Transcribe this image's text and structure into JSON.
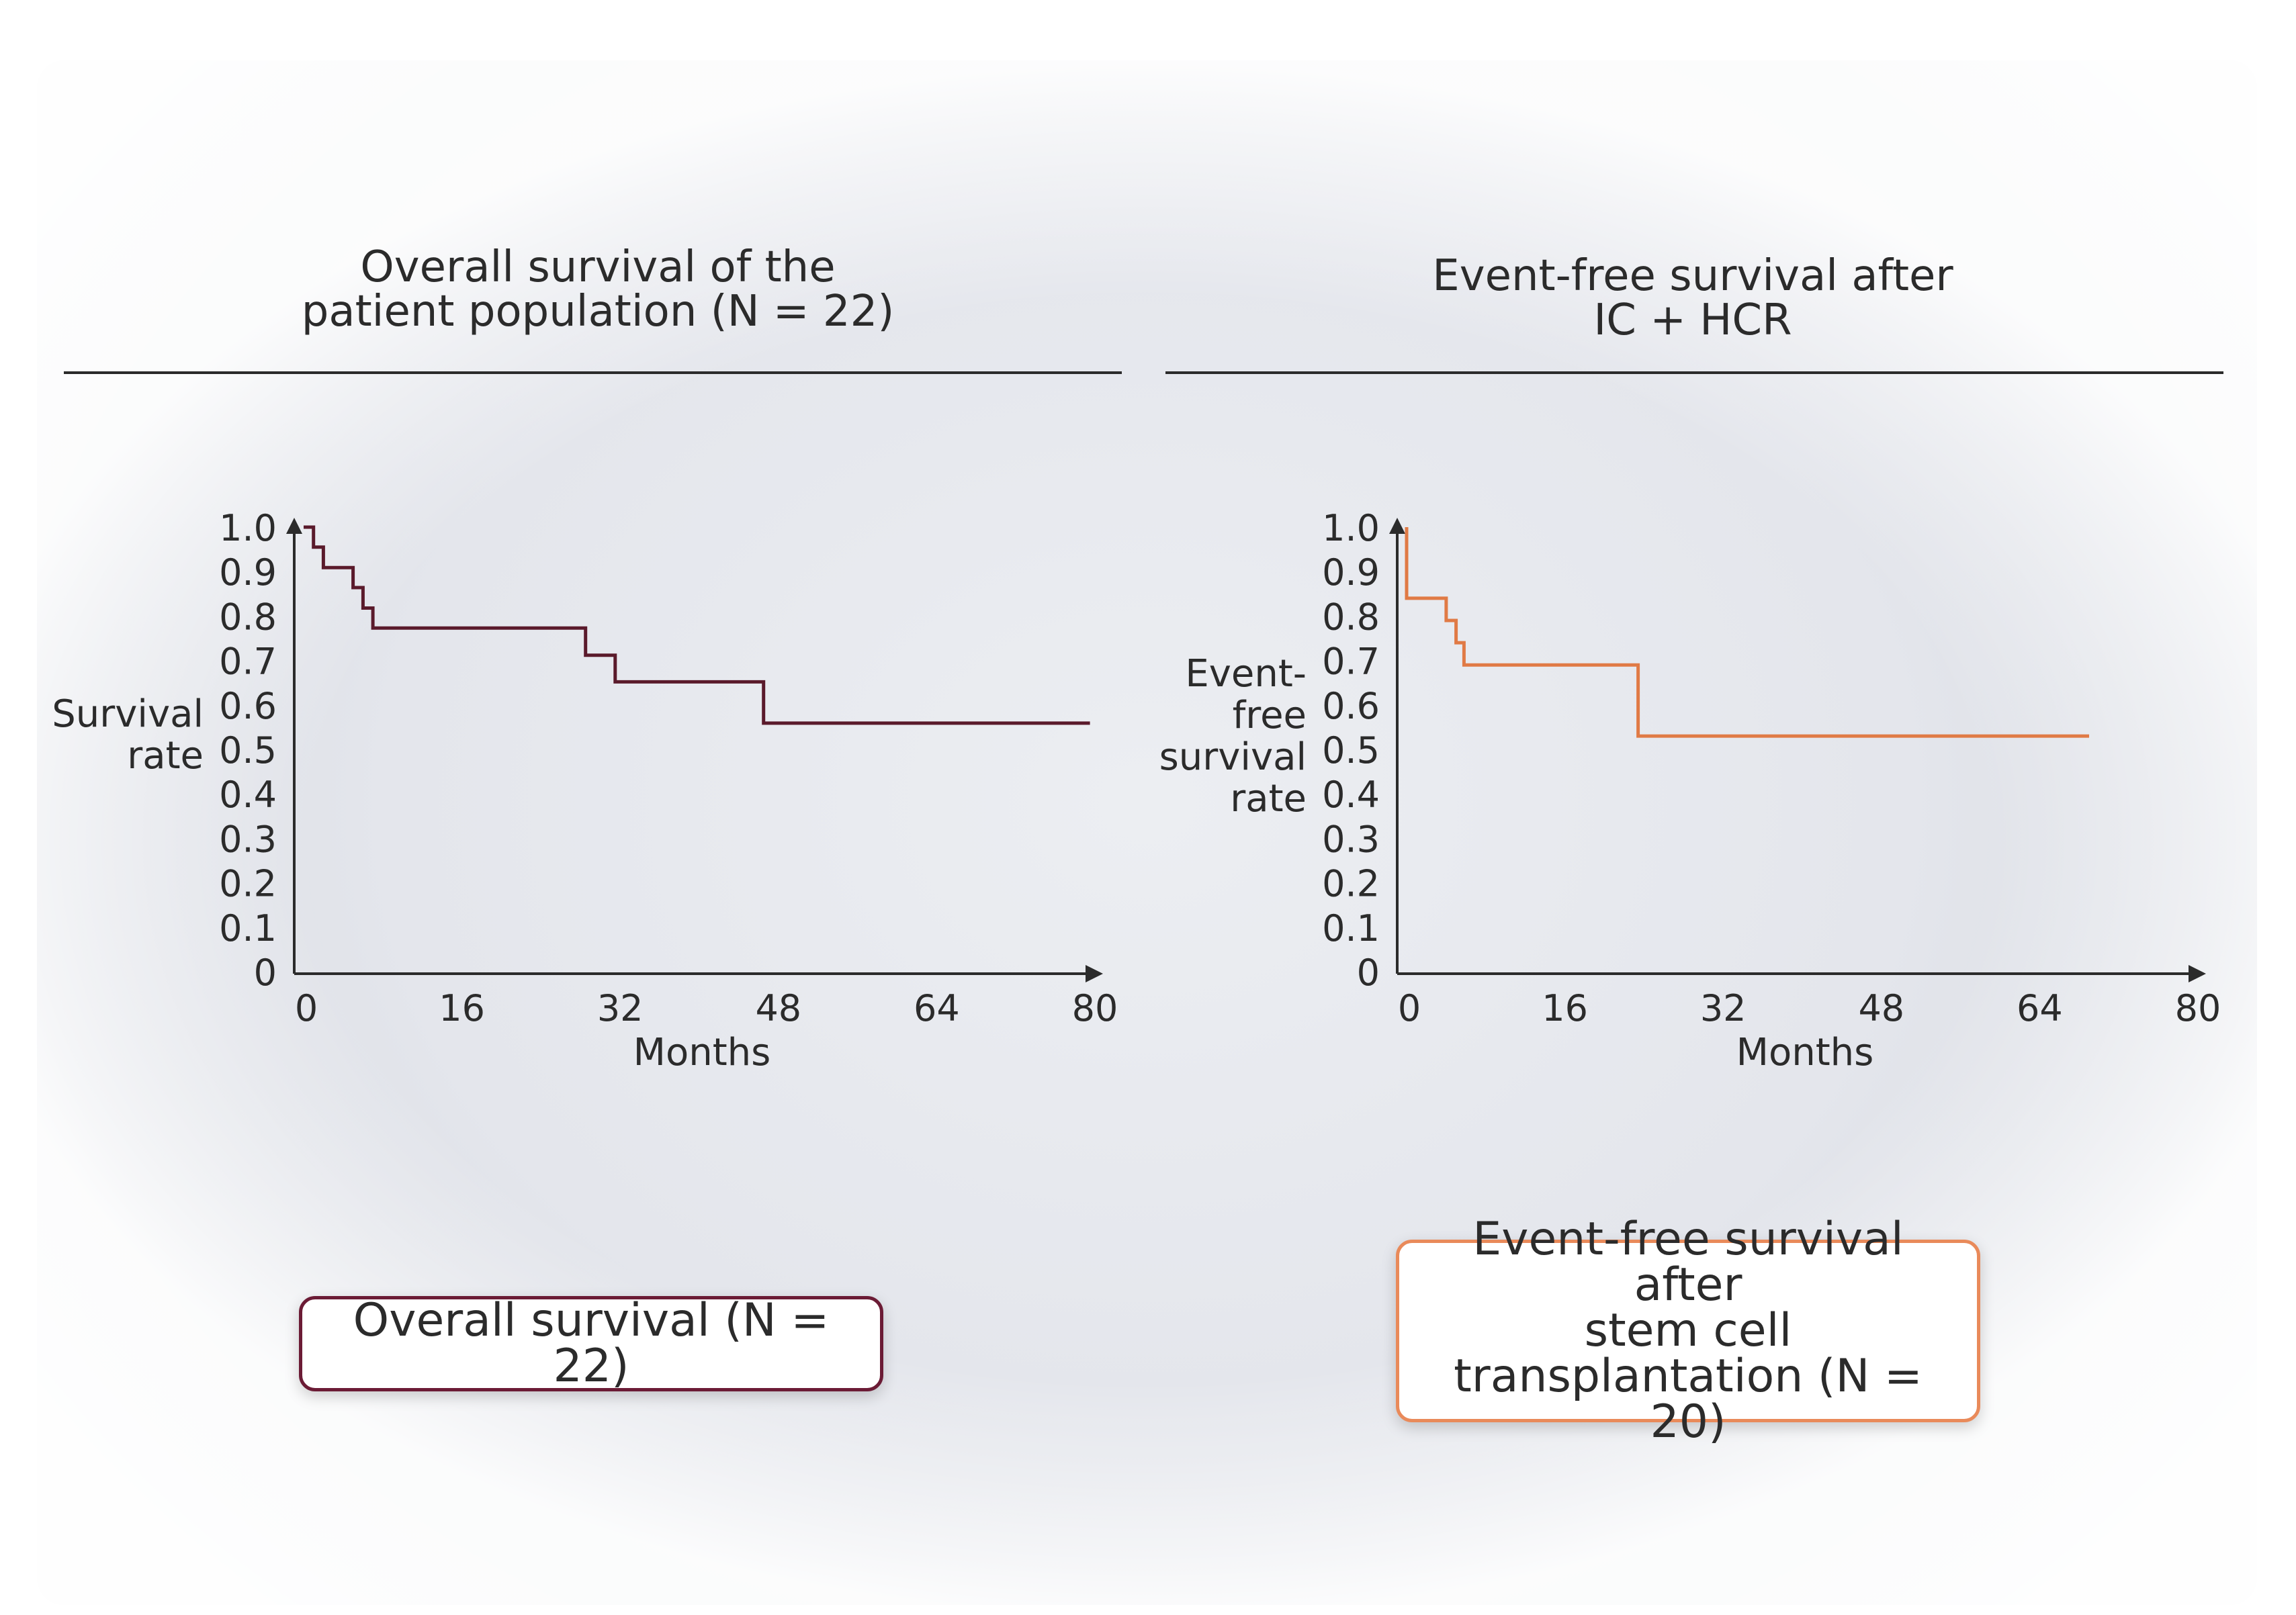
{
  "colors": {
    "overall_survival_line": "#5a1a2b",
    "event_free_line": "#e07a45",
    "axis": "#2b2b2b",
    "text": "#2b2b2b"
  },
  "chart_data": [
    {
      "type": "line",
      "step": true,
      "title": "Overall survival of the\npatient population (N = 22)",
      "xlabel": "Months",
      "ylabel": "Survival\nrate",
      "xlim": [
        0,
        80
      ],
      "ylim": [
        0,
        1.0
      ],
      "xticks": [
        "0",
        "16",
        "32",
        "48",
        "64",
        "80"
      ],
      "yticks": [
        "0",
        "0.1",
        "0.2",
        "0.3",
        "0.4",
        "0.5",
        "0.6",
        "0.7",
        "0.8",
        "0.9",
        "1.0"
      ],
      "series": [
        {
          "name": "Overall survival (N = 22)",
          "x": [
            0,
            1,
            1,
            2,
            2,
            5,
            5,
            6,
            6,
            7,
            7,
            28.5,
            28.5,
            31.5,
            31.5,
            46.5,
            46.5,
            79.5
          ],
          "y": [
            1.0,
            1.0,
            0.955,
            0.955,
            0.909,
            0.909,
            0.864,
            0.864,
            0.818,
            0.818,
            0.773,
            0.773,
            0.712,
            0.712,
            0.652,
            0.652,
            0.559,
            0.559
          ]
        }
      ]
    },
    {
      "type": "line",
      "step": true,
      "title": "Event-free survival after\nIC + HCR",
      "xlabel": "Months",
      "ylabel": "Event-\nfree\nsurvival\nrate",
      "xlim": [
        0,
        80
      ],
      "ylim": [
        0,
        1.0
      ],
      "xticks": [
        "0",
        "16",
        "32",
        "48",
        "64",
        "80"
      ],
      "yticks": [
        "0",
        "0.1",
        "0.2",
        "0.3",
        "0.4",
        "0.5",
        "0.6",
        "0.7",
        "0.8",
        "0.9",
        "1.0"
      ],
      "series": [
        {
          "name": "Event-free survival after stem cell transplantation (N = 20)",
          "x": [
            0,
            0,
            4,
            4,
            5,
            5,
            5.8,
            5.8,
            23.4,
            23.4,
            69
          ],
          "y": [
            1.0,
            0.84,
            0.84,
            0.79,
            0.79,
            0.74,
            0.74,
            0.69,
            0.69,
            0.53,
            0.53
          ]
        }
      ]
    }
  ],
  "legends": {
    "left": "Overall survival (N = 22)",
    "right": "Event-free survival after\nstem cell\ntransplantation (N = 20)"
  }
}
